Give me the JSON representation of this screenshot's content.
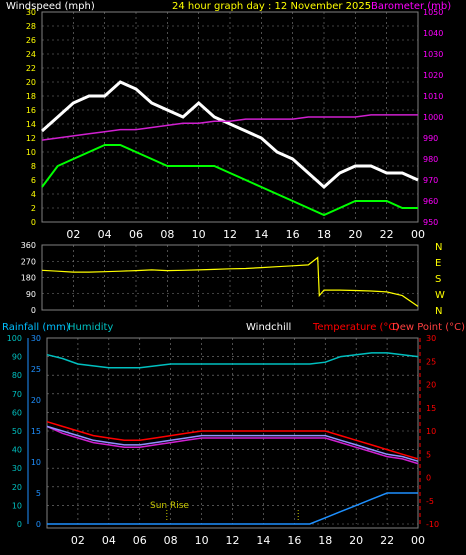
{
  "header": {
    "left_label": "Windspeed (mph)",
    "title": "24 hour graph day : 12 November 2025",
    "right_label": "Barometer (mb)"
  },
  "colors": {
    "wind": "#ffffff",
    "gust": "#ffffff",
    "baro": "#d020d0",
    "avg_wind": "#00ff00",
    "direction": "#ffff00",
    "rain": "#1e90ff",
    "humidity": "#00c0c0",
    "temperature": "#ff0000",
    "dewpoint": "#ff4040",
    "windchill": "#9090ff",
    "sun": "#c8c800",
    "grid": "#808080",
    "title": "#ffff00",
    "left_axis": "#ffff00",
    "right_axis_baro": "#ff00ff",
    "right_axis_temp": "#ff0000",
    "left_axis_rain": "#00bfff",
    "left_axis_humidity": "#00c0c0"
  },
  "x_ticks": [
    "02",
    "04",
    "06",
    "08",
    "10",
    "12",
    "14",
    "16",
    "18",
    "20",
    "22",
    "00"
  ],
  "chart_data": [
    {
      "type": "line",
      "title": "24 hour graph day : 12 November 2025",
      "ylabel": "Windspeed (mph)",
      "y2label": "Barometer (mb)",
      "ylim": [
        0,
        30
      ],
      "y2lim": [
        950,
        1050
      ],
      "y_ticks": [
        "0",
        "2",
        "4",
        "6",
        "8",
        "10",
        "12",
        "14",
        "16",
        "18",
        "20",
        "22",
        "24",
        "26",
        "28",
        "30"
      ],
      "y2_ticks": [
        "950",
        "960",
        "970",
        "980",
        "990",
        "1000",
        "1010",
        "1020",
        "1030",
        "1040",
        "1050"
      ],
      "x_hours": [
        0,
        1,
        2,
        3,
        4,
        5,
        6,
        7,
        8,
        9,
        10,
        11,
        12,
        13,
        14,
        15,
        16,
        17,
        18,
        19,
        20,
        21,
        22,
        23,
        24
      ],
      "series": [
        {
          "name": "Windspeed",
          "values": [
            13,
            15,
            17,
            18,
            18,
            20,
            19,
            17,
            16,
            15,
            17,
            15,
            14,
            13,
            12,
            10,
            9,
            7,
            5,
            7,
            8,
            8,
            7,
            7,
            6
          ]
        },
        {
          "name": "",
          "values": [
            5,
            8,
            9,
            10,
            11,
            11,
            10,
            9,
            8,
            8,
            8,
            8,
            7,
            6,
            5,
            4,
            3,
            2,
            1,
            2,
            3,
            3,
            3,
            2,
            2
          ]
        },
        {
          "name": "Barometer",
          "values": [
            989,
            990,
            991,
            992,
            993,
            994,
            994,
            995,
            996,
            997,
            997,
            998,
            998,
            999,
            999,
            999,
            999,
            1000,
            1000,
            1000,
            1000,
            1001,
            1001,
            1001,
            1001
          ]
        }
      ]
    },
    {
      "type": "line",
      "ylabel": "",
      "ylim": [
        0,
        360
      ],
      "y_ticks": [
        "0",
        "90",
        "180",
        "270",
        "360"
      ],
      "y2_ticks": [
        "N",
        "W",
        "S",
        "E",
        "N"
      ],
      "x_hours": [
        0,
        1,
        2,
        3,
        4,
        5,
        6,
        7,
        8,
        9,
        10,
        11,
        12,
        13,
        14,
        15,
        16,
        17,
        17.6,
        17.7,
        18,
        19,
        20,
        21,
        22,
        23,
        24
      ],
      "series": [
        {
          "name": "",
          "values": [
            220,
            215,
            210,
            210,
            212,
            215,
            218,
            222,
            218,
            220,
            222,
            225,
            228,
            230,
            235,
            240,
            245,
            250,
            290,
            80,
            110,
            110,
            108,
            105,
            100,
            80,
            20
          ]
        }
      ]
    },
    {
      "type": "line",
      "ylim": [
        -10,
        30
      ],
      "y_ticks_rain": [
        "0",
        "5",
        "10",
        "15",
        "20",
        "25",
        "30"
      ],
      "y_ticks_humidity": [
        "0",
        "10",
        "20",
        "30",
        "40",
        "50",
        "60",
        "70",
        "80",
        "90",
        "100"
      ],
      "y2_ticks": [
        "-10",
        "-5",
        "0",
        "5",
        "10",
        "15",
        "20",
        "25",
        "30"
      ],
      "labels": {
        "rain": "Rainfall (mm)",
        "humidity": "Humidity",
        "windchill": "Windchill",
        "temperature": "Temperature (°C)",
        "dewpoint": "Dew Point (°C)",
        "sunrise": "Sun Rise"
      },
      "sunrise_hour": 7.75,
      "sunset_hour": 16.25,
      "x_hours": [
        0,
        1,
        2,
        3,
        4,
        5,
        6,
        7,
        8,
        9,
        10,
        11,
        12,
        13,
        14,
        15,
        16,
        17,
        18,
        19,
        20,
        21,
        22,
        23,
        24
      ],
      "series": [
        {
          "name": "Humidity",
          "values": [
            91,
            89,
            86,
            85,
            84,
            84,
            84,
            85,
            86,
            86,
            86,
            86,
            86,
            86,
            86,
            86,
            86,
            86,
            87,
            90,
            91,
            92,
            92,
            91,
            90
          ]
        },
        {
          "name": "Temperature (°C)",
          "values": [
            12,
            11,
            10,
            9,
            8.5,
            8,
            8,
            8.5,
            9,
            9.5,
            10,
            10,
            10,
            10,
            10,
            10,
            10,
            10,
            10,
            9,
            8,
            7,
            6,
            5,
            4
          ]
        },
        {
          "name": "Dew Point (°C)",
          "values": [
            11,
            9.5,
            8.5,
            7.5,
            7,
            6.5,
            6.5,
            7,
            7.5,
            8,
            8.5,
            8.5,
            8.5,
            8.5,
            8.5,
            8.5,
            8.5,
            8.5,
            8.5,
            7.5,
            6.5,
            5.5,
            4.5,
            4,
            3
          ]
        },
        {
          "name": "Windchill",
          "values": [
            11,
            10,
            9,
            8,
            7.5,
            7,
            7,
            7.5,
            8,
            8.5,
            9,
            9,
            9,
            9,
            9,
            9,
            9,
            9,
            9,
            8,
            7,
            6,
            5,
            4.5,
            3.5
          ]
        },
        {
          "name": "Rainfall (mm)",
          "values": [
            0,
            0,
            0,
            0,
            0,
            0,
            0,
            0,
            0,
            0,
            0,
            0,
            0,
            0,
            0,
            0,
            0,
            0,
            1,
            2,
            3,
            4,
            5,
            5,
            5
          ]
        }
      ]
    }
  ]
}
